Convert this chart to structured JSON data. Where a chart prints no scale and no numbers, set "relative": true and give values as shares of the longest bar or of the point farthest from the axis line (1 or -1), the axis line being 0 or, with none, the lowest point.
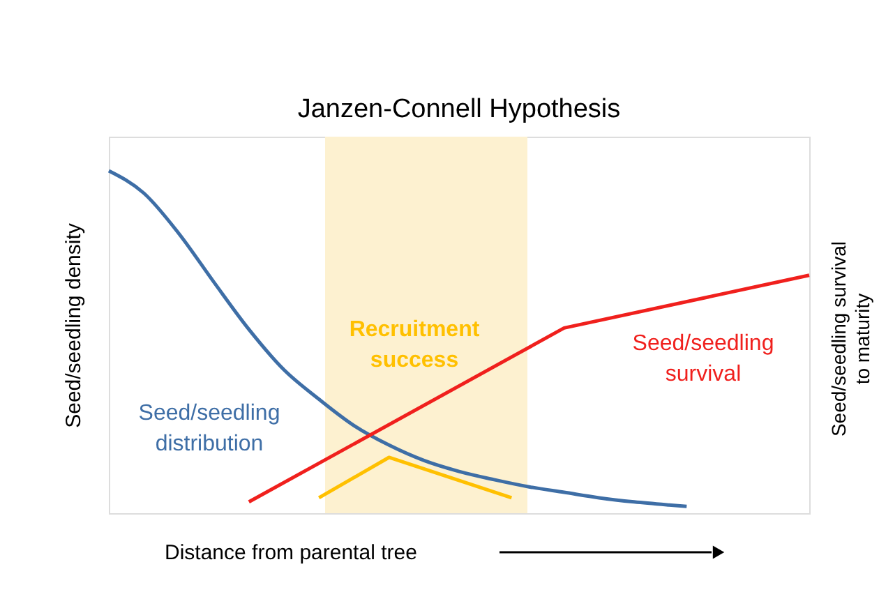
{
  "chart_data": {
    "type": "line",
    "title": "Janzen-Connell Hypothesis",
    "xlabel": "Distance from parental tree",
    "ylabel": "Seed/seedling density",
    "y2label": "Seed/seedling survival to maturity",
    "relative": true,
    "grid": false,
    "annotations": [
      "Recruitment success"
    ],
    "tick_labels": false,
    "categories": [
      null,
      null,
      null,
      null,
      null,
      null,
      null,
      null,
      null,
      null,
      null,
      null,
      null,
      null,
      null,
      null,
      null,
      null,
      null,
      null,
      null,
      null,
      null,
      null,
      null,
      null,
      null,
      null,
      null,
      null,
      null,
      null,
      null,
      null,
      null,
      null,
      null,
      null,
      null,
      null,
      null
    ],
    "series": [
      {
        "name": "Seed/seedling distribution",
        "color": "#3e6ea6",
        "values": [
          1.0,
          null,
          0.935,
          null,
          0.817,
          null,
          0.675,
          null,
          0.537,
          null,
          0.419,
          null,
          0.333,
          null,
          0.256,
          null,
          0.199,
          null,
          0.154,
          null,
          0.122,
          null,
          0.098,
          null,
          0.077,
          null,
          0.061,
          null,
          0.045,
          null,
          0.033,
          null,
          0.024,
          0.02,
          null,
          null,
          null,
          null,
          null,
          null,
          null
        ]
      },
      {
        "name": "Seed/seedling survival",
        "color": "#f0201d",
        "values": [
          null,
          null,
          null,
          null,
          null,
          null,
          null,
          null,
          0.033,
          null,
          null,
          null,
          null,
          null,
          null,
          null,
          null,
          null,
          null,
          null,
          null,
          null,
          null,
          null,
          null,
          null,
          0.541,
          null,
          null,
          null,
          null,
          null,
          null,
          null,
          null,
          null,
          null,
          null,
          null,
          null,
          0.695
        ]
      },
      {
        "color": "#ffc000",
        "values": [
          null,
          null,
          null,
          null,
          null,
          null,
          null,
          null,
          null,
          null,
          null,
          null,
          0.045,
          null,
          null,
          null,
          0.163,
          null,
          null,
          null,
          null,
          null,
          null,
          0.045,
          null,
          null,
          null,
          null,
          null,
          null,
          null,
          null,
          null,
          null,
          null,
          null,
          null,
          null,
          null,
          null,
          null
        ]
      }
    ]
  }
}
